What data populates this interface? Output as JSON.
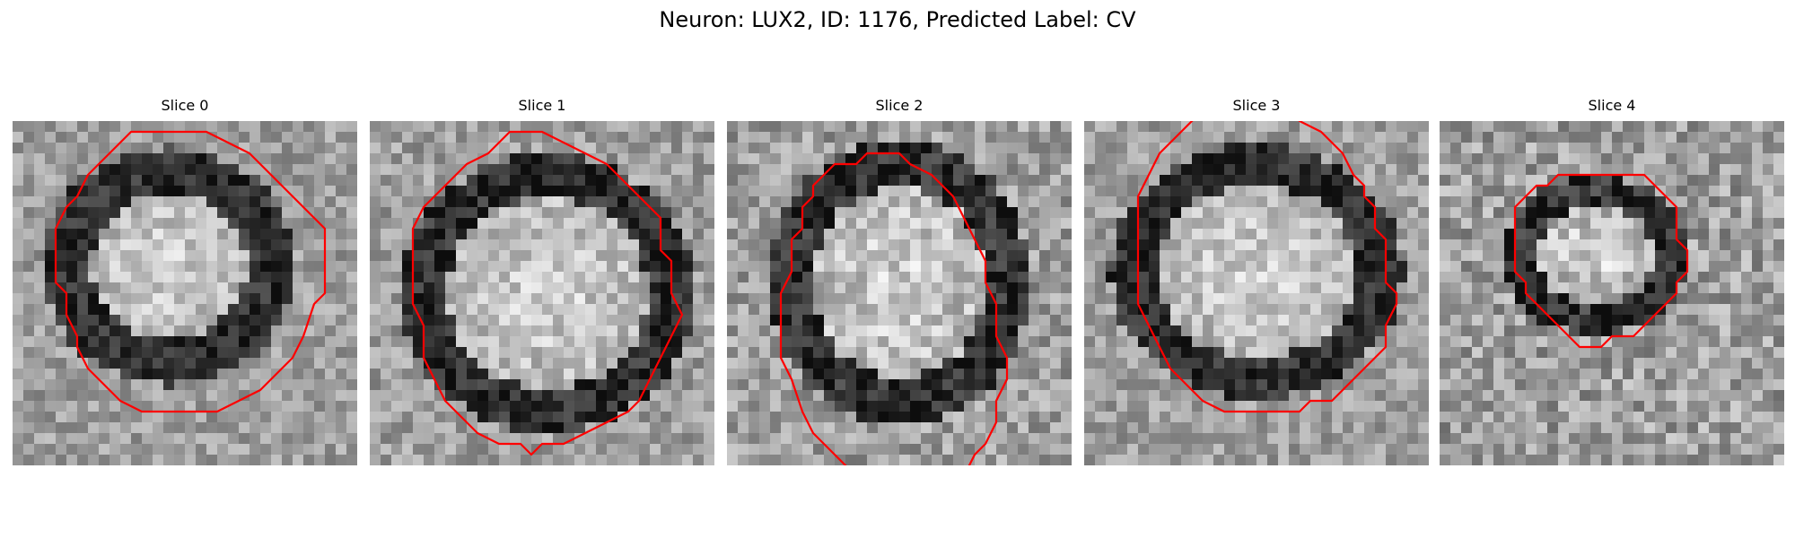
{
  "figure": {
    "title": "Neuron: LUX2, ID: 1176, Predicted Label: CV"
  },
  "colors": {
    "contour": "#ff0000",
    "background": "#ffffff"
  },
  "panels": [
    {
      "title": "Slice 0",
      "contour": [
        [
          14,
          1
        ],
        [
          18,
          1
        ],
        [
          20,
          2
        ],
        [
          22,
          3
        ],
        [
          24,
          5
        ],
        [
          25,
          6
        ],
        [
          26,
          7
        ],
        [
          27,
          8
        ],
        [
          28,
          9
        ],
        [
          29,
          10
        ],
        [
          29,
          16
        ],
        [
          28,
          17
        ],
        [
          27,
          20
        ],
        [
          26,
          22
        ],
        [
          25,
          23
        ],
        [
          24,
          24
        ],
        [
          23,
          25
        ],
        [
          21,
          26
        ],
        [
          19,
          27
        ],
        [
          12,
          27
        ],
        [
          10,
          26
        ],
        [
          9,
          25
        ],
        [
          8,
          24
        ],
        [
          7,
          23
        ],
        [
          6,
          21
        ],
        [
          6,
          20
        ],
        [
          5,
          18
        ],
        [
          5,
          16
        ],
        [
          4,
          15
        ],
        [
          4,
          10
        ],
        [
          5,
          8
        ],
        [
          6,
          7
        ],
        [
          7,
          5
        ],
        [
          8,
          4
        ],
        [
          9,
          3
        ],
        [
          10,
          2
        ],
        [
          11,
          1
        ]
      ],
      "closed": true
    },
    {
      "title": "Slice 1",
      "contour": [
        [
          13,
          1
        ],
        [
          16,
          1
        ],
        [
          18,
          2
        ],
        [
          20,
          3
        ],
        [
          22,
          4
        ],
        [
          24,
          6
        ],
        [
          25,
          7
        ],
        [
          26,
          8
        ],
        [
          27,
          9
        ],
        [
          27,
          12
        ],
        [
          28,
          13
        ],
        [
          28,
          16
        ],
        [
          29,
          18
        ],
        [
          28,
          20
        ],
        [
          27,
          22
        ],
        [
          26,
          24
        ],
        [
          25,
          26
        ],
        [
          24,
          27
        ],
        [
          22,
          28
        ],
        [
          20,
          29
        ],
        [
          18,
          30
        ],
        [
          16,
          30
        ],
        [
          15,
          31
        ],
        [
          14,
          30
        ],
        [
          12,
          30
        ],
        [
          10,
          29
        ],
        [
          9,
          28
        ],
        [
          8,
          27
        ],
        [
          7,
          26
        ],
        [
          6,
          24
        ],
        [
          5,
          22
        ],
        [
          5,
          19
        ],
        [
          4,
          17
        ],
        [
          4,
          10
        ],
        [
          5,
          8
        ],
        [
          6,
          7
        ],
        [
          7,
          6
        ],
        [
          8,
          5
        ],
        [
          9,
          4
        ],
        [
          11,
          3
        ],
        [
          12,
          2
        ]
      ],
      "closed": true
    },
    {
      "title": "Slice 2",
      "contour": [
        [
          12,
          33
        ],
        [
          10,
          31
        ],
        [
          8,
          29
        ],
        [
          7,
          27
        ],
        [
          6,
          24
        ],
        [
          5,
          22
        ],
        [
          5,
          16
        ],
        [
          6,
          14
        ],
        [
          6,
          11
        ],
        [
          7,
          10
        ],
        [
          7,
          8
        ],
        [
          8,
          7
        ],
        [
          8,
          6
        ],
        [
          9,
          5
        ],
        [
          10,
          4
        ],
        [
          12,
          4
        ],
        [
          13,
          3
        ],
        [
          16,
          3
        ],
        [
          17,
          4
        ],
        [
          19,
          5
        ],
        [
          20,
          6
        ],
        [
          21,
          7
        ],
        [
          22,
          9
        ],
        [
          23,
          11
        ],
        [
          24,
          13
        ],
        [
          24,
          15
        ],
        [
          25,
          17
        ],
        [
          25,
          20
        ],
        [
          26,
          22
        ],
        [
          26,
          24
        ],
        [
          25,
          26
        ],
        [
          25,
          28
        ],
        [
          24,
          30
        ],
        [
          23,
          31
        ],
        [
          22,
          33
        ]
      ],
      "closed": false
    },
    {
      "title": "Slice 3",
      "contour": [
        [
          11,
          -1
        ],
        [
          9,
          1
        ],
        [
          7,
          3
        ],
        [
          6,
          5
        ],
        [
          5,
          7
        ],
        [
          5,
          17
        ],
        [
          6,
          19
        ],
        [
          7,
          21
        ],
        [
          8,
          23
        ],
        [
          9,
          24
        ],
        [
          11,
          26
        ],
        [
          13,
          27
        ],
        [
          20,
          27
        ],
        [
          21,
          26
        ],
        [
          23,
          26
        ],
        [
          24,
          25
        ],
        [
          25,
          24
        ],
        [
          26,
          23
        ],
        [
          27,
          22
        ],
        [
          28,
          21
        ],
        [
          28,
          19
        ],
        [
          29,
          17
        ],
        [
          29,
          16
        ],
        [
          28,
          15
        ],
        [
          28,
          11
        ],
        [
          27,
          10
        ],
        [
          27,
          8
        ],
        [
          26,
          7
        ],
        [
          26,
          6
        ],
        [
          25,
          5
        ],
        [
          24,
          3
        ],
        [
          23,
          2
        ],
        [
          22,
          1
        ],
        [
          20,
          0
        ],
        [
          19,
          -1
        ]
      ],
      "closed": false
    },
    {
      "title": "Slice 4",
      "contour": [
        [
          13,
          5
        ],
        [
          19,
          5
        ],
        [
          20,
          6
        ],
        [
          21,
          7
        ],
        [
          22,
          8
        ],
        [
          22,
          11
        ],
        [
          23,
          12
        ],
        [
          23,
          14
        ],
        [
          22,
          15
        ],
        [
          22,
          16
        ],
        [
          21,
          17
        ],
        [
          20,
          18
        ],
        [
          19,
          19
        ],
        [
          18,
          20
        ],
        [
          16,
          20
        ],
        [
          15,
          21
        ],
        [
          13,
          21
        ],
        [
          12,
          20
        ],
        [
          11,
          19
        ],
        [
          10,
          18
        ],
        [
          9,
          17
        ],
        [
          8,
          16
        ],
        [
          8,
          15
        ],
        [
          7,
          14
        ],
        [
          7,
          8
        ],
        [
          8,
          7
        ],
        [
          9,
          6
        ],
        [
          10,
          6
        ],
        [
          11,
          5
        ]
      ],
      "closed": true
    }
  ]
}
